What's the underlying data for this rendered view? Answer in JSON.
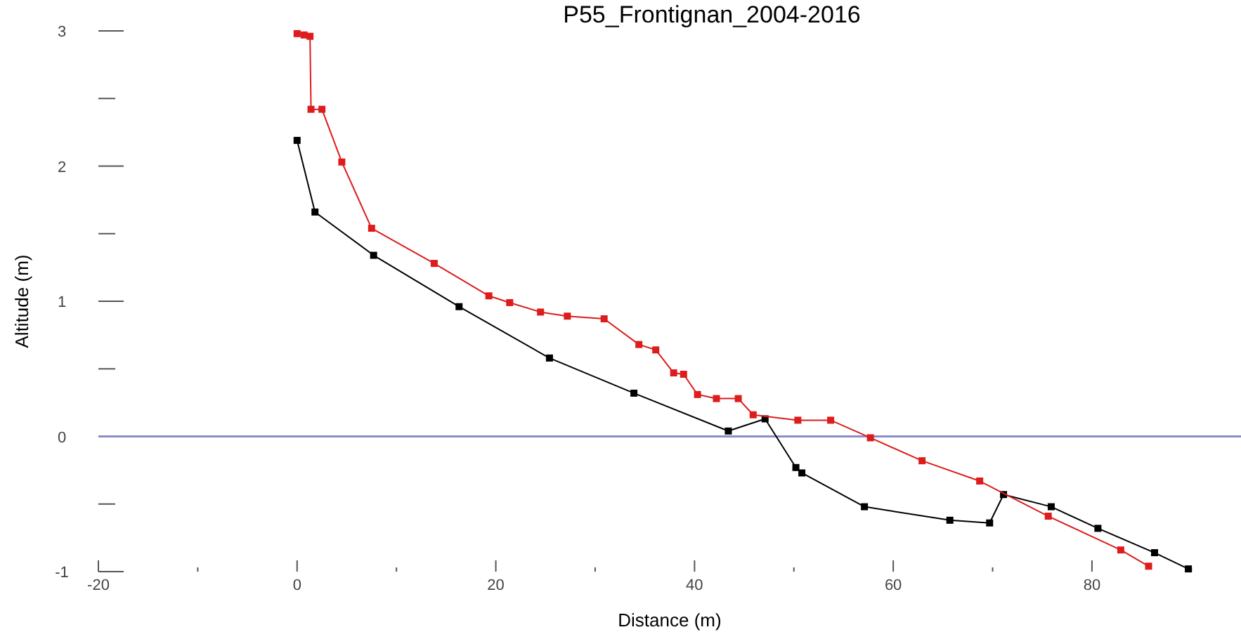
{
  "chart_data": {
    "type": "line",
    "title": "P55_Frontignan_2004-2016",
    "xlabel": "Distance (m)",
    "ylabel": "Altitude (m)",
    "xlim": [
      -20,
      95
    ],
    "ylim": [
      -1,
      3
    ],
    "xticks": [
      -20,
      {
        "value": -10,
        "label": null
      },
      0,
      {
        "value": 10,
        "label": null
      },
      20,
      {
        "value": 30,
        "label": null
      },
      40,
      {
        "value": 50,
        "label": null
      },
      60,
      {
        "value": 70,
        "label": null
      },
      80,
      {
        "value": 90,
        "label": null
      }
    ],
    "yticks": [
      -1,
      {
        "value": -0.5,
        "label": null
      },
      0,
      {
        "value": 0.5,
        "label": null
      },
      1,
      {
        "value": 1.5,
        "label": null
      },
      2,
      {
        "value": 2.5,
        "label": null
      },
      3
    ],
    "grid": false,
    "marker": "square",
    "line_style": "solid",
    "ref_lines": [
      {
        "axis": "y",
        "value": 0,
        "color": "#8c8cc8"
      }
    ],
    "series": [
      {
        "color": "#000000",
        "x": [
          0,
          1.8,
          7.7,
          16.3,
          25.4,
          33.9,
          43.4,
          47.1,
          50.2,
          50.8,
          57.1,
          65.7,
          69.7,
          71.1,
          75.9,
          80.6,
          86.3,
          89.7
        ],
        "values": [
          2.19,
          1.66,
          1.34,
          0.96,
          0.58,
          0.32,
          0.04,
          0.13,
          -0.23,
          -0.27,
          -0.52,
          -0.62,
          -0.64,
          -0.43,
          -0.52,
          -0.68,
          -0.86,
          -0.98
        ]
      },
      {
        "color": "#dd1c1c",
        "x": [
          0,
          0.7,
          1.3,
          1.4,
          2.5,
          4.5,
          7.5,
          13.8,
          19.3,
          21.4,
          24.5,
          27.2,
          30.9,
          34.4,
          36.1,
          37.9,
          38.9,
          40.3,
          42.2,
          44.4,
          45.9,
          50.4,
          53.7,
          57.7,
          62.9,
          68.7,
          75.6,
          82.9,
          85.7
        ],
        "values": [
          2.98,
          2.97,
          2.96,
          2.42,
          2.42,
          2.03,
          1.54,
          1.28,
          1.04,
          0.99,
          0.92,
          0.89,
          0.87,
          0.68,
          0.64,
          0.47,
          0.46,
          0.31,
          0.28,
          0.28,
          0.16,
          0.12,
          0.12,
          -0.01,
          -0.18,
          -0.33,
          -0.59,
          -0.84,
          -0.96
        ]
      }
    ]
  }
}
